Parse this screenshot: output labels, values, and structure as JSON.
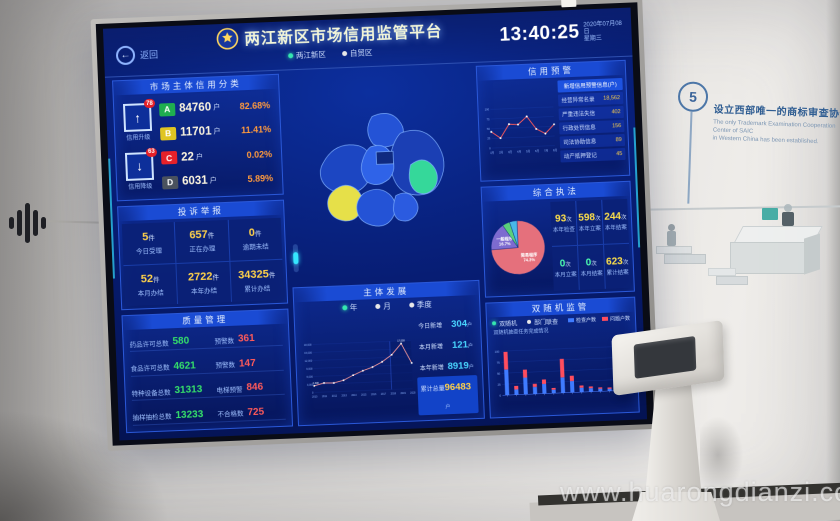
{
  "scene": {
    "watermark": "www.huarongdianzi.com",
    "wall_note": {
      "number": "5",
      "title_zh": "设立西部唯一的商标审查协作中心。",
      "desc_en_1": "The only Trademark Examination Cooperation Center of SAIC",
      "desc_en_2": "in Western China has been established."
    }
  },
  "colors": {
    "accent_cyan": "#49d6ff",
    "accent_yellow": "#ffd24a",
    "alert_red": "#ff5a5a",
    "ok_green": "#35e06a"
  },
  "screen": {
    "back_label": "返回",
    "title": "两江新区市场信用监管平台",
    "clock": {
      "time": "13:40:25",
      "date": "2020年07月08日",
      "weekday": "星期三"
    },
    "region_toggles": [
      {
        "label": "两江新区"
      },
      {
        "label": "自贸区"
      }
    ],
    "credit": {
      "header": "市场主体信用分类",
      "up": {
        "badge": "78",
        "label": "信用升级"
      },
      "down": {
        "badge": "63",
        "label": "信用降级"
      },
      "rows": [
        {
          "grade": "A",
          "count": "84760",
          "unit": "户",
          "pct": "82.68%",
          "color": "#1fae4f"
        },
        {
          "grade": "B",
          "count": "11701",
          "unit": "户",
          "pct": "11.41%",
          "color": "#e0c522"
        },
        {
          "grade": "C",
          "count": "22",
          "unit": "户",
          "pct": "0.02%",
          "color": "#e62129"
        },
        {
          "grade": "D",
          "count": "6031",
          "unit": "户",
          "pct": "5.89%",
          "color": "#4a525e"
        }
      ]
    },
    "complaints": {
      "header": "投诉举报",
      "cells": [
        {
          "value": "5",
          "unit": "件",
          "label": "今日受理"
        },
        {
          "value": "657",
          "unit": "件",
          "label": "正在办理"
        },
        {
          "value": "0",
          "unit": "件",
          "label": "逾期未结"
        },
        {
          "value": "52",
          "unit": "件",
          "label": "本月办结"
        },
        {
          "value": "2722",
          "unit": "件",
          "label": "本年办结"
        },
        {
          "value": "34325",
          "unit": "件",
          "label": "累计办结"
        }
      ]
    },
    "quality": {
      "header": "质量管理",
      "rows": [
        {
          "l1": "药品许可总数",
          "v1": "580",
          "l2": "预警数",
          "v2": "361"
        },
        {
          "l1": "食品许可总数",
          "v1": "4621",
          "l2": "预警数",
          "v2": "147"
        },
        {
          "l1": "特种设备总数",
          "v1": "31313",
          "l2": "电梯预警",
          "v2": "846"
        },
        {
          "l1": "抽样抽检总数",
          "v1": "13233",
          "l2": "不合格数",
          "v2": "725"
        }
      ]
    },
    "warning": {
      "header": "信用预警",
      "list_header": "新增信用预警信息(户)",
      "list": [
        {
          "label": "经营异常名录",
          "value": "18,562"
        },
        {
          "label": "严重违法失信",
          "value": "402"
        },
        {
          "label": "行政处罚信息",
          "value": "156"
        },
        {
          "label": "司法协助信息",
          "value": "89"
        },
        {
          "label": "动产抵押登记",
          "value": "45"
        }
      ],
      "chart": {
        "type": "line",
        "x": [
          "1月",
          "2月",
          "3月",
          "4月",
          "5月",
          "6月",
          "7月",
          "8月"
        ],
        "values": [
          42,
          25,
          60,
          58,
          78,
          45,
          32,
          55
        ],
        "color": "#ff5a5a"
      }
    },
    "enforcement": {
      "header": "综合执法",
      "pie": {
        "type": "pie",
        "slices": [
          {
            "label": "简易程序",
            "pct": 74.3,
            "color": "#e5707c"
          },
          {
            "label": "一般程序",
            "pct": 16.7,
            "color": "#7d6bd0"
          },
          {
            "label": "其他",
            "pct": 4.5,
            "color": "#5ad07a"
          },
          {
            "label": "移送",
            "pct": 4.5,
            "color": "#49b8e8"
          }
        ]
      },
      "stats": [
        {
          "value": "93",
          "unit": "次",
          "label": "本年检查",
          "color": "#ffe14a"
        },
        {
          "value": "598",
          "unit": "次",
          "label": "本年立案",
          "color": "#ffe14a"
        },
        {
          "value": "244",
          "unit": "次",
          "label": "本年结案",
          "color": "#ffe14a"
        },
        {
          "value": "0",
          "unit": "次",
          "label": "本月立案",
          "color": "#4dffb0"
        },
        {
          "value": "0",
          "unit": "次",
          "label": "本月结案",
          "color": "#4dffb0"
        },
        {
          "value": "623",
          "unit": "次",
          "label": "累计结案",
          "color": "#ffe14a"
        }
      ]
    },
    "random": {
      "header": "双随机监管",
      "toggles": [
        {
          "label": "双随机"
        },
        {
          "label": "部门联查"
        }
      ],
      "caption": "双随机抽查任务完成情况",
      "legend": [
        {
          "label": "检查户数",
          "color": "#3f7bff"
        },
        {
          "label": "问题户数",
          "color": "#ff4d5e"
        }
      ],
      "chart": {
        "type": "bar",
        "stacked": true,
        "series": [
          {
            "name": "检查户数",
            "values": [
              58,
              12,
              38,
              16,
              22,
              8,
              35,
              26,
              10,
              8,
              6,
              5,
              18,
              4
            ]
          },
          {
            "name": "问题户数",
            "values": [
              40,
              8,
              18,
              7,
              10,
              4,
              42,
              12,
              5,
              4,
              3,
              3,
              9,
              2
            ]
          }
        ],
        "ylim": [
          0,
          100
        ]
      }
    },
    "development": {
      "header": "主体发展",
      "toggles": [
        {
          "label": "年"
        },
        {
          "label": "月"
        },
        {
          "label": "季度"
        }
      ],
      "chart": {
        "type": "line",
        "x": [
          "2010",
          "2011",
          "2012",
          "2013",
          "2014",
          "2015",
          "2016",
          "2017",
          "2018",
          "2019",
          "2020"
        ],
        "values": [
          2498,
          3420,
          3280,
          4150,
          5900,
          7420,
          8660,
          10480,
          12980,
          17038,
          9600
        ],
        "ylim": [
          0,
          18000
        ],
        "yticks": [
          "0",
          "3,000",
          "6,000",
          "9,000",
          "12,000",
          "15,000",
          "18,000"
        ],
        "first_label": "2,498",
        "peak_label": "17,038"
      },
      "stats": [
        {
          "label": "今日新增",
          "value": "304",
          "unit": "户"
        },
        {
          "label": "本月新增",
          "value": "121",
          "unit": "户"
        },
        {
          "label": "本年新增",
          "value": "8919",
          "unit": "户"
        },
        {
          "label": "累计总量",
          "value": "96483",
          "unit": "户"
        }
      ]
    }
  }
}
